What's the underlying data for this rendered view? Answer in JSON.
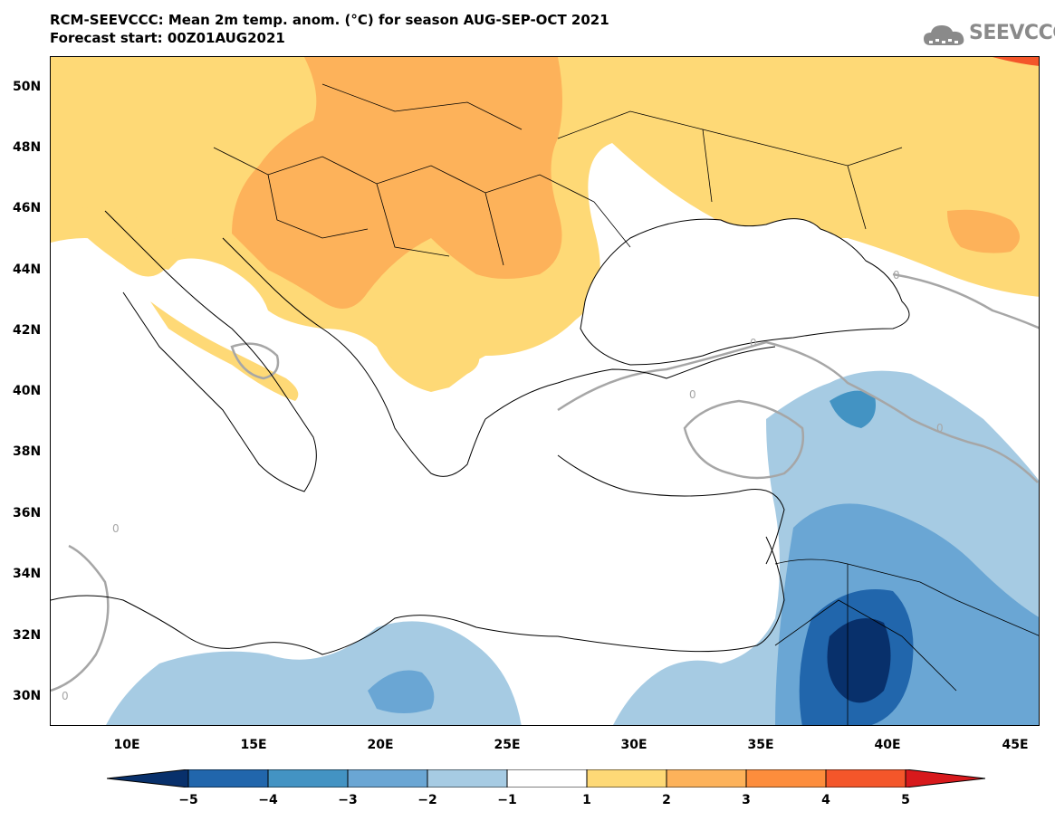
{
  "header": {
    "title": "RCM-SEEVCCC: Mean 2m temp. anom. (°C) for season AUG-SEP-OCT 2021",
    "subtitle": "Forecast start: 00Z01AUG2021",
    "logo_text": "SEEVCCC",
    "logo_icon": "cloud-logo-icon"
  },
  "map": {
    "lat_labels": [
      "50N",
      "48N",
      "46N",
      "44N",
      "42N",
      "40N",
      "38N",
      "36N",
      "34N",
      "32N",
      "30N"
    ],
    "lon_labels": [
      "10E",
      "15E",
      "20E",
      "25E",
      "30E",
      "35E",
      "40E",
      "45E"
    ],
    "contour_label": "0",
    "extent": {
      "lon": [
        7,
        46
      ],
      "lat": [
        29,
        51
      ]
    }
  },
  "colorbar": {
    "labels": [
      "−5",
      "−4",
      "−3",
      "−2",
      "−1",
      "1",
      "2",
      "3",
      "4",
      "5"
    ],
    "colors": [
      "#08306b",
      "#2166ac",
      "#4393c3",
      "#6aa6d4",
      "#a6cbe3",
      "#ffffff",
      "#fed976",
      "#fdb25a",
      "#fd8d3c",
      "#f4562a",
      "#d7191c"
    ]
  }
}
